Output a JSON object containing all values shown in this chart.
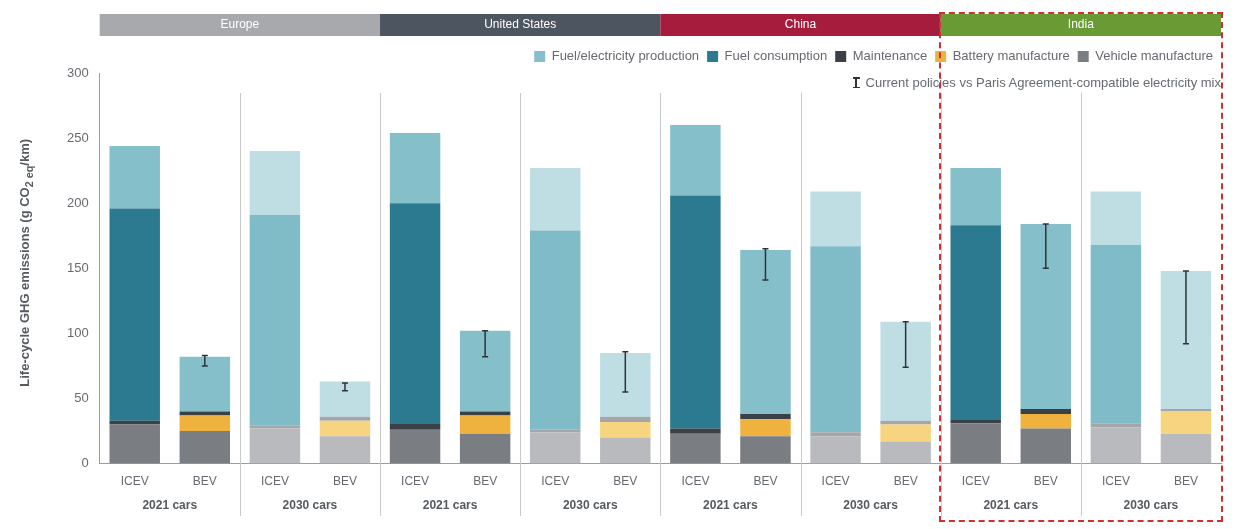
{
  "chart_data": {
    "type": "bar",
    "stacked": true,
    "ylabel": "Life-cycle GHG emissions (g CO$_{2 eq}$/km)",
    "ylim": [
      0,
      300
    ],
    "yticks": [
      0,
      50,
      100,
      150,
      200,
      250,
      300
    ],
    "grid": false,
    "legend": "top right",
    "categories": [
      "ICEV",
      "BEV",
      "ICEV",
      "BEV",
      "ICEV",
      "BEV",
      "ICEV",
      "BEV",
      "ICEV",
      "BEV",
      "ICEV",
      "BEV",
      "ICEV",
      "BEV",
      "ICEV",
      "BEV"
    ],
    "annotations": [
      "Europe",
      "United States",
      "China",
      "India",
      "2021 cars",
      "2030 cars",
      "2021 cars",
      "2030 cars",
      "2021 cars",
      "2030 cars",
      "2021 cars",
      "2030 cars",
      "Current policies vs Paris Agreement-compatible electricity mix"
    ],
    "series": [
      {
        "name": "Vehicle manufacture",
        "color": "#7a7d81",
        "colors": [
          "#7a7d81",
          "#7a7d81",
          "#b8babd",
          "#b8babd",
          "#7a7d81",
          "#7a7d81",
          "#b8babd",
          "#b8babd",
          "#7a7d81",
          "#7a7d81",
          "#b8babd",
          "#b8babd",
          "#7a7d81",
          "#7a7d81",
          "#b8babd",
          "#b8babd"
        ],
        "values": [
          30,
          25,
          27,
          21,
          26,
          23,
          24,
          20,
          23,
          21,
          21,
          17,
          31,
          27,
          28,
          23
        ]
      },
      {
        "name": "Battery manufacture",
        "color": "#f0b23e",
        "colors": [
          "#f0b23e",
          "#f0b23e",
          "#f7d47f",
          "#f7d47f",
          "#f0b23e",
          "#f0b23e",
          "#f7d47f",
          "#f7d47f",
          "#f0b23e",
          "#f0b23e",
          "#f7d47f",
          "#f7d47f",
          "#f0b23e",
          "#f0b23e",
          "#f7d47f",
          "#f7d47f"
        ],
        "values": [
          0,
          12,
          0,
          12,
          0,
          14,
          0,
          12,
          0,
          13,
          0,
          13,
          0,
          11,
          0,
          17
        ]
      },
      {
        "name": "Maintenance",
        "color": "#3b4046",
        "colors": [
          "#3b4046",
          "#3b4046",
          "#a3a6aa",
          "#a3a6aa",
          "#3b4046",
          "#3b4046",
          "#a3a6aa",
          "#a3a6aa",
          "#3b4046",
          "#3b4046",
          "#a3a6aa",
          "#a3a6aa",
          "#3b4046",
          "#3b4046",
          "#a3a6aa",
          "#a3a6aa"
        ],
        "values": [
          3,
          3,
          2,
          3,
          5,
          3,
          2,
          4,
          4,
          4,
          3,
          3,
          3,
          4,
          3,
          2
        ]
      },
      {
        "name": "Fuel consumption",
        "color": "#2c7a8f",
        "colors": [
          "#2c7a8f",
          "#2c7a8f",
          "#80bcc8",
          "#80bcc8",
          "#2c7a8f",
          "#2c7a8f",
          "#80bcc8",
          "#80bcc8",
          "#2c7a8f",
          "#2c7a8f",
          "#80bcc8",
          "#80bcc8",
          "#2c7a8f",
          "#2c7a8f",
          "#80bcc8",
          "#80bcc8"
        ],
        "values": [
          163,
          0,
          162,
          0,
          169,
          0,
          153,
          0,
          179,
          0,
          143,
          0,
          149,
          0,
          137,
          0
        ]
      },
      {
        "name": "Fuel/electricity production",
        "color": "#84bfca",
        "colors": [
          "#84bfca",
          "#84bfca",
          "#bedee4",
          "#bedee4",
          "#84bfca",
          "#84bfca",
          "#bedee4",
          "#bedee4",
          "#84bfca",
          "#84bfca",
          "#bedee4",
          "#bedee4",
          "#84bfca",
          "#84bfca",
          "#bedee4",
          "#bedee4"
        ],
        "values": [
          48,
          42,
          49,
          27,
          54,
          62,
          48,
          49,
          54,
          126,
          42,
          76,
          44,
          142,
          41,
          106
        ],
        "errors": [
          null,
          [
            75,
            83
          ],
          null,
          [
            56,
            62
          ],
          null,
          [
            82,
            102
          ],
          null,
          [
            55,
            86
          ],
          null,
          [
            141,
            165
          ],
          null,
          [
            74,
            109
          ],
          null,
          [
            150,
            184
          ],
          null,
          [
            92,
            148
          ]
        ]
      }
    ]
  }
}
